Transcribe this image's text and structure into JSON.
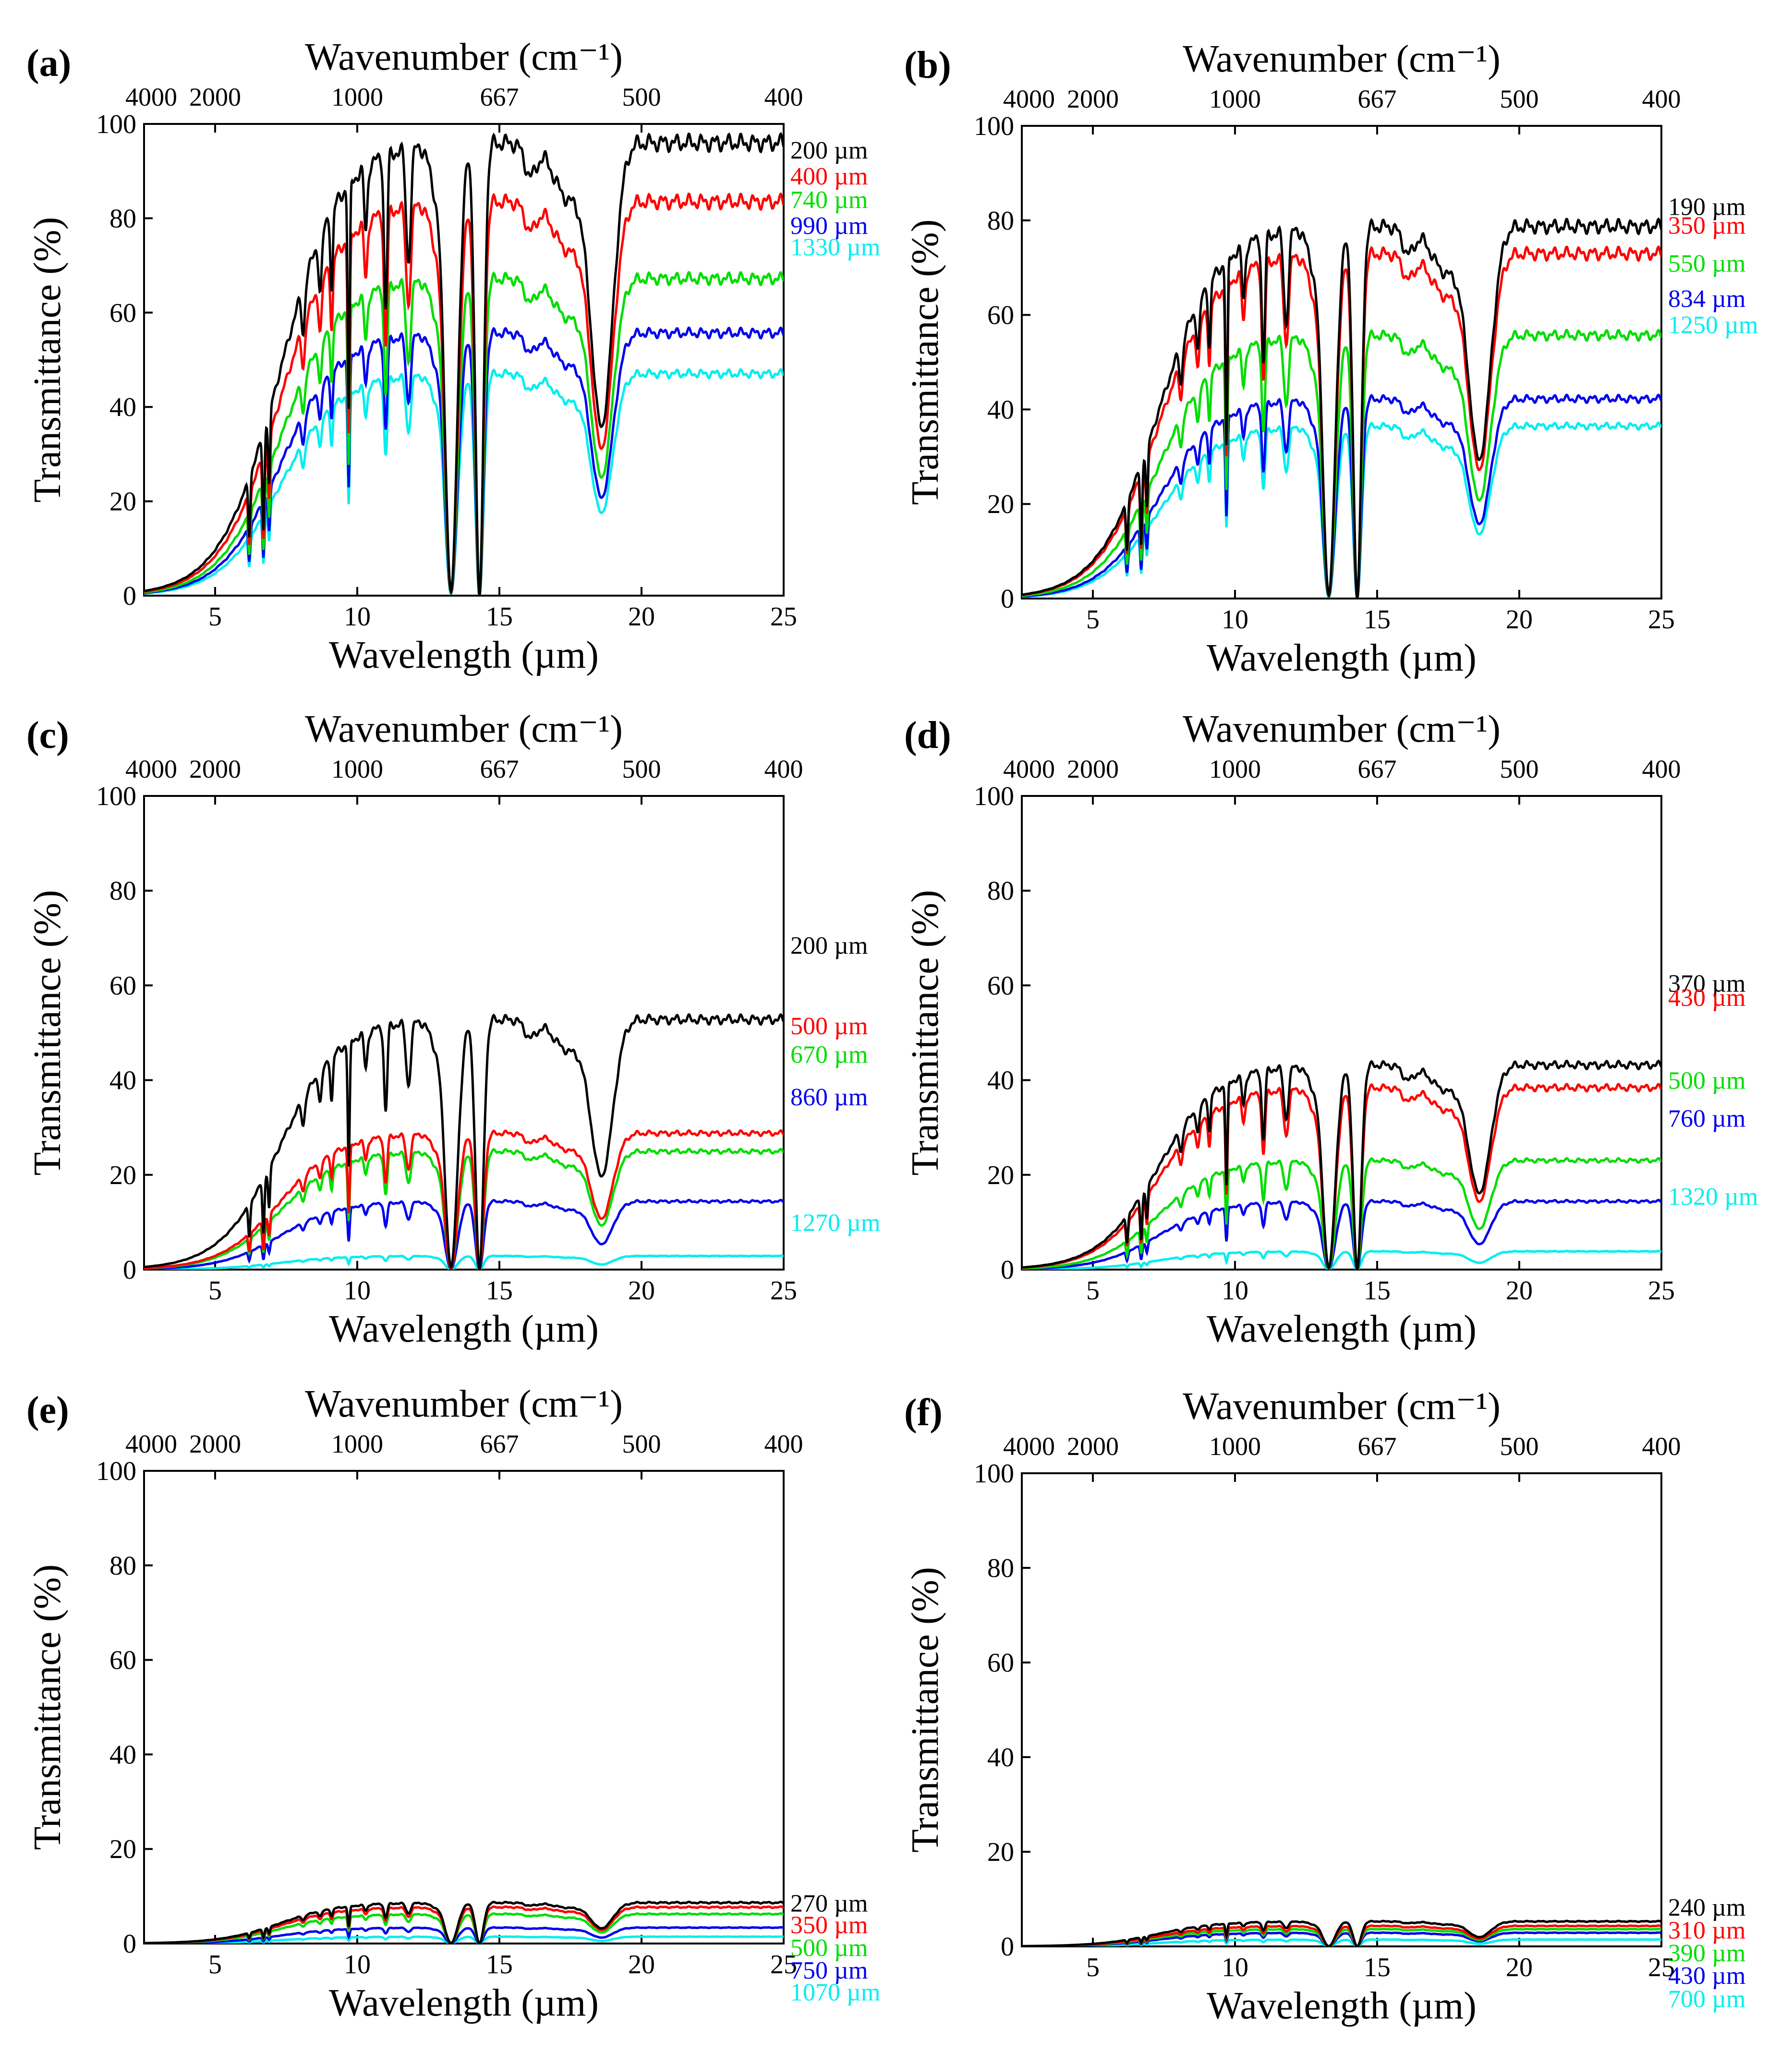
{
  "figure": {
    "x_ticks": [
      "5",
      "10",
      "15",
      "20",
      "25"
    ],
    "y_ticks": [
      "0",
      "20",
      "40",
      "60",
      "80",
      "100"
    ]
  },
  "chart_data": [
    {
      "type": "line",
      "panel_label": "(a)",
      "top_xlabel": "Wavenumber (cm⁻¹)",
      "top_ticks": [
        "4000",
        "2000",
        "1000",
        "667",
        "500",
        "400"
      ],
      "xlabel": "Wavelength (µm)",
      "ylabel": "Transmittance (%)",
      "xlim": [
        2.5,
        25
      ],
      "ylim": [
        0,
        100
      ],
      "series": [
        {
          "name": "200 µm",
          "color": "#000000",
          "scale": 1.0,
          "offset": 0.0
        },
        {
          "name": "400 µm",
          "color": "#ff0000",
          "scale": 0.87,
          "offset": 0.6
        },
        {
          "name": "740 µm",
          "color": "#00dd00",
          "scale": 0.7,
          "offset": 1.4
        },
        {
          "name": "990 µm",
          "color": "#0000ee",
          "scale": 0.58,
          "offset": 2.1
        },
        {
          "name": "1330 µm",
          "color": "#00eeee",
          "scale": 0.49,
          "offset": 2.7
        }
      ]
    },
    {
      "type": "line",
      "panel_label": "(b)",
      "top_xlabel": "Wavenumber (cm⁻¹)",
      "top_ticks": [
        "4000",
        "2000",
        "1000",
        "667",
        "500",
        "400"
      ],
      "xlabel": "Wavelength (µm)",
      "ylabel": "Transmittance (%)",
      "xlim": [
        2.5,
        25
      ],
      "ylim": [
        0,
        100
      ],
      "series": [
        {
          "name": "190 µm",
          "color": "#000000",
          "scale": 0.82,
          "offset": 0.0
        },
        {
          "name": "350 µm",
          "color": "#ff0000",
          "scale": 0.76,
          "offset": -1.0
        },
        {
          "name": "550 µm",
          "color": "#00dd00",
          "scale": 0.58,
          "offset": 0.8
        },
        {
          "name": "834 µm",
          "color": "#0000ee",
          "scale": 0.44,
          "offset": 1.6
        },
        {
          "name": "1250 µm",
          "color": "#00eeee",
          "scale": 0.38,
          "offset": 2.2
        }
      ]
    },
    {
      "type": "line",
      "panel_label": "(c)",
      "top_xlabel": "Wavenumber (cm⁻¹)",
      "top_ticks": [
        "4000",
        "2000",
        "1000",
        "667",
        "500",
        "400"
      ],
      "xlabel": "Wavelength (µm)",
      "ylabel": "Transmittance (%)",
      "xlim": [
        2.5,
        25
      ],
      "ylim": [
        0,
        100
      ],
      "series": [
        {
          "name": "200 µm",
          "color": "#000000",
          "scale": 0.55,
          "offset": 0.0
        },
        {
          "name": "500 µm",
          "color": "#ff0000",
          "scale": 0.3,
          "offset": 0.0
        },
        {
          "name": "670 µm",
          "color": "#00dd00",
          "scale": 0.26,
          "offset": 0.0
        },
        {
          "name": "860 µm",
          "color": "#0000ee",
          "scale": 0.15,
          "offset": 0.0
        },
        {
          "name": "1270 µm",
          "color": "#00eeee",
          "scale": 0.03,
          "offset": 0.0
        }
      ]
    },
    {
      "type": "line",
      "panel_label": "(d)",
      "top_xlabel": "Wavenumber (cm⁻¹)",
      "top_ticks": [
        "4000",
        "2000",
        "1000",
        "667",
        "500",
        "400"
      ],
      "xlabel": "Wavelength (µm)",
      "ylabel": "Transmittance (%)",
      "xlim": [
        2.5,
        25
      ],
      "ylim": [
        0,
        100
      ],
      "series": [
        {
          "name": "370 µm",
          "color": "#000000",
          "scale": 0.45,
          "offset": 0.0
        },
        {
          "name": "430 µm",
          "color": "#ff0000",
          "scale": 0.4,
          "offset": 0.0
        },
        {
          "name": "500 µm",
          "color": "#00dd00",
          "scale": 0.24,
          "offset": 0.0
        },
        {
          "name": "760 µm",
          "color": "#0000ee",
          "scale": 0.15,
          "offset": 0.0
        },
        {
          "name": "1320 µm",
          "color": "#00eeee",
          "scale": 0.04,
          "offset": 0.0
        }
      ]
    },
    {
      "type": "line",
      "panel_label": "(e)",
      "top_xlabel": "Wavenumber (cm⁻¹)",
      "top_ticks": [
        "4000",
        "2000",
        "1000",
        "667",
        "500",
        "400"
      ],
      "xlabel": "Wavelength (µm)",
      "ylabel": "Transmittance (%)",
      "xlim": [
        2.5,
        25
      ],
      "ylim": [
        0,
        100
      ],
      "series": [
        {
          "name": "270 µm",
          "color": "#000000",
          "scale": 0.09,
          "offset": 0.0
        },
        {
          "name": "350 µm",
          "color": "#ff0000",
          "scale": 0.08,
          "offset": 0.0
        },
        {
          "name": "500 µm",
          "color": "#00dd00",
          "scale": 0.065,
          "offset": 0.0
        },
        {
          "name": "750 µm",
          "color": "#0000ee",
          "scale": 0.035,
          "offset": 0.0
        },
        {
          "name": "1070 µm",
          "color": "#00eeee",
          "scale": 0.015,
          "offset": 0.0
        }
      ]
    },
    {
      "type": "line",
      "panel_label": "(f)",
      "top_xlabel": "Wavenumber (cm⁻¹)",
      "top_ticks": [
        "4000",
        "2000",
        "1000",
        "667",
        "500",
        "400"
      ],
      "xlabel": "Wavelength (µm)",
      "ylabel": "Transmittance (%)",
      "xlim": [
        2.5,
        25
      ],
      "ylim": [
        0,
        100
      ],
      "series": [
        {
          "name": "240 µm",
          "color": "#000000",
          "scale": 0.055,
          "offset": 0.0
        },
        {
          "name": "310 µm",
          "color": "#ff0000",
          "scale": 0.045,
          "offset": 0.0
        },
        {
          "name": "390 µm",
          "color": "#00dd00",
          "scale": 0.038,
          "offset": 0.0
        },
        {
          "name": "430 µm",
          "color": "#0000ee",
          "scale": 0.03,
          "offset": 0.0
        },
        {
          "name": "700 µm",
          "color": "#00eeee",
          "scale": 0.015,
          "offset": 0.0
        }
      ]
    }
  ]
}
